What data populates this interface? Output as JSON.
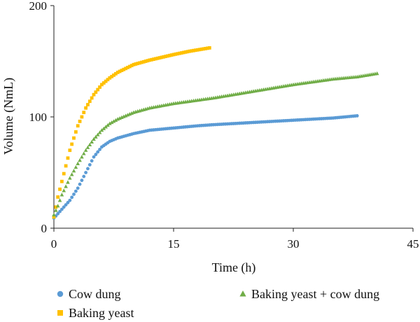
{
  "chart_data": {
    "type": "scatter",
    "title": "",
    "xlabel": "Time (h)",
    "ylabel": "Volume (NmL)",
    "xlim": [
      0,
      45
    ],
    "ylim": [
      0,
      200
    ],
    "x_ticks": [
      "0",
      "15",
      "30",
      "45"
    ],
    "y_ticks": [
      "0",
      "100",
      "200"
    ],
    "grid": false,
    "legend_position": "bottom",
    "series": [
      {
        "name": "Cow dung",
        "marker": "circle",
        "color": "#5B9BD5",
        "x": [
          0,
          0.5,
          1,
          2,
          3,
          4,
          5,
          6,
          7,
          8,
          10,
          12,
          15,
          18,
          20,
          25,
          30,
          35,
          38
        ],
        "y": [
          9,
          13,
          17,
          25,
          36,
          50,
          64,
          73,
          78,
          81,
          85,
          88,
          90,
          92,
          93,
          95,
          97,
          99,
          101
        ]
      },
      {
        "name": "Baking yeast",
        "marker": "square",
        "color": "#FFC000",
        "x": [
          0,
          0.5,
          1,
          1.5,
          2,
          3,
          4,
          5,
          6,
          7,
          8,
          10,
          12,
          15,
          17,
          19.5
        ],
        "y": [
          10,
          28,
          42,
          56,
          70,
          92,
          108,
          120,
          129,
          135,
          140,
          147,
          151,
          156,
          159,
          162
        ]
      },
      {
        "name": "Baking yeast + cow dung",
        "marker": "triangle",
        "color": "#70AD47",
        "x": [
          0,
          0.5,
          1,
          2,
          3,
          4,
          5,
          6,
          7,
          8,
          10,
          12,
          15,
          18,
          20,
          25,
          30,
          35,
          38,
          40.5
        ],
        "y": [
          12,
          20,
          30,
          45,
          58,
          70,
          80,
          88,
          94,
          98,
          104,
          108,
          112,
          115,
          117,
          123,
          129,
          134,
          136,
          139
        ]
      }
    ]
  }
}
